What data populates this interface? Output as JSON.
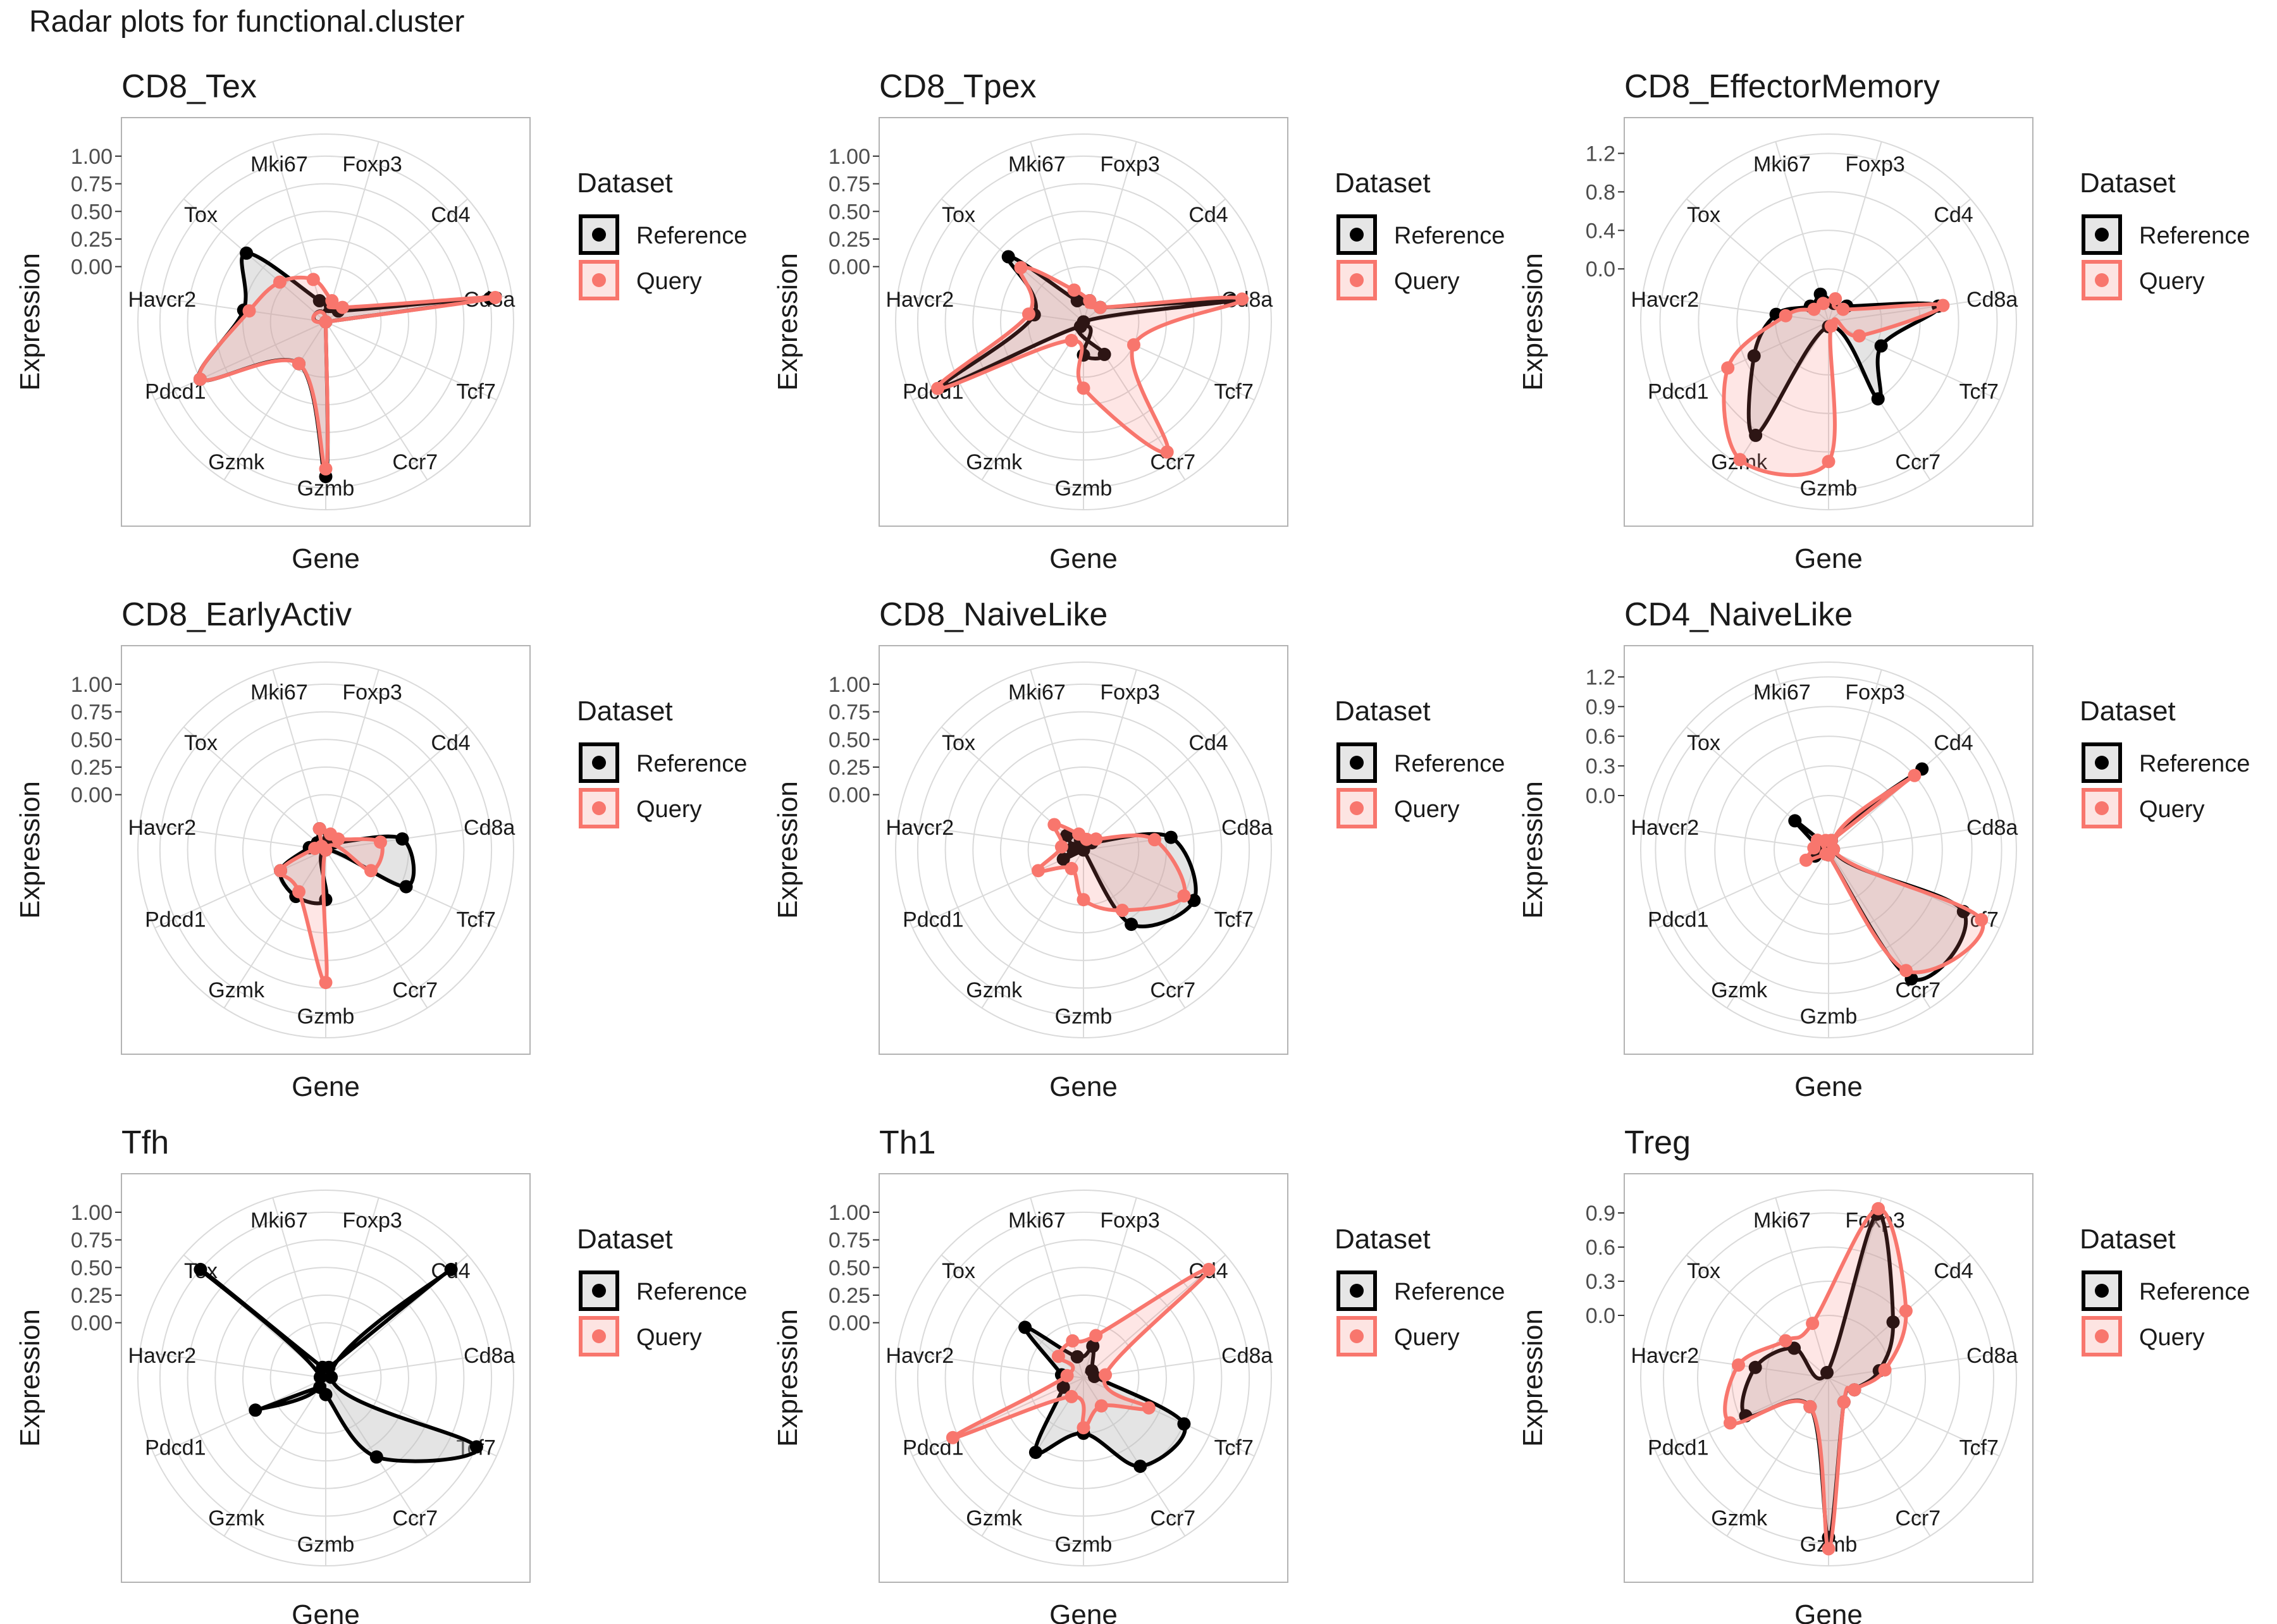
{
  "title": "Radar plots for functional.cluster",
  "genes": [
    "Foxp3",
    "Cd4",
    "Cd8a",
    "Tcf7",
    "Ccr7",
    "Gzmb",
    "Gzmk",
    "Pdcd1",
    "Havcr2",
    "Tox",
    "Mki67"
  ],
  "legend": {
    "title": "Dataset",
    "entries": [
      "Reference",
      "Query"
    ]
  },
  "colors": {
    "reference": "#000000",
    "query": "#F8766D",
    "reference_fill": "#BEBEBE",
    "query_fill": "#F8766D",
    "grid": "#DADADA",
    "panel_border": "#B3B3B3",
    "text": "#1A1A1A",
    "tick_text": "#4D4D4D"
  },
  "chart_data": [
    {
      "type": "radar",
      "title": "CD8_Tex",
      "xlabel": "Gene",
      "ylabel": "Expression",
      "y_ticks": [
        "0.00",
        "0.25",
        "0.50",
        "0.75",
        "1.00"
      ],
      "ylim": [
        -0.5,
        1.2
      ],
      "grid": true,
      "series": [
        {
          "name": "Reference",
          "values": [
            -0.35,
            -0.35,
            1.0,
            -0.5,
            -0.5,
            0.9,
            -0.05,
            0.75,
            0.25,
            0.45,
            -0.3
          ]
        },
        {
          "name": "Query",
          "values": [
            -0.3,
            -0.3,
            1.05,
            -0.5,
            -0.5,
            0.83,
            -0.05,
            0.75,
            0.2,
            0.05,
            -0.1
          ]
        }
      ]
    },
    {
      "type": "radar",
      "title": "CD8_Tpex",
      "xlabel": "Gene",
      "ylabel": "Expression",
      "y_ticks": [
        "0.00",
        "0.25",
        "0.50",
        "0.75",
        "1.00"
      ],
      "ylim": [
        -0.5,
        1.2
      ],
      "grid": true,
      "series": [
        {
          "name": "Reference",
          "values": [
            -0.3,
            -0.3,
            0.85,
            -0.5,
            -0.15,
            -0.2,
            -0.45,
            0.9,
            -0.05,
            0.4,
            -0.3
          ]
        },
        {
          "name": "Query",
          "values": [
            -0.3,
            -0.3,
            0.95,
            0.0,
            0.9,
            0.1,
            -0.3,
            0.95,
            0.0,
            0.25,
            -0.2
          ]
        }
      ]
    },
    {
      "type": "radar",
      "title": "CD8_EffectorMemory",
      "xlabel": "Gene",
      "ylabel": "Expression",
      "y_ticks": [
        "0.0",
        "0.4",
        "0.8",
        "1.2"
      ],
      "ylim": [
        -0.55,
        1.4
      ],
      "grid": true,
      "series": [
        {
          "name": "Reference",
          "values": [
            -0.35,
            -0.3,
            0.6,
            0.05,
            0.4,
            -0.5,
            0.85,
            0.3,
            0.0,
            -0.3,
            -0.25
          ]
        },
        {
          "name": "Query",
          "values": [
            -0.3,
            -0.35,
            0.65,
            -0.2,
            -0.5,
            0.9,
            1.15,
            0.6,
            -0.1,
            -0.35,
            -0.35
          ]
        }
      ]
    },
    {
      "type": "radar",
      "title": "CD8_EarlyActiv",
      "xlabel": "Gene",
      "ylabel": "Expression",
      "y_ticks": [
        "0.00",
        "0.25",
        "0.50",
        "0.75",
        "1.00"
      ],
      "ylim": [
        -0.5,
        1.2
      ],
      "grid": true,
      "series": [
        {
          "name": "Reference",
          "values": [
            -0.4,
            -0.4,
            0.2,
            0.3,
            -0.5,
            -0.05,
            0.0,
            -0.05,
            -0.35,
            -0.4,
            -0.3
          ]
        },
        {
          "name": "Query",
          "values": [
            -0.35,
            -0.35,
            0.0,
            -0.05,
            -0.5,
            0.7,
            -0.05,
            -0.05,
            -0.4,
            -0.45,
            -0.3
          ]
        }
      ]
    },
    {
      "type": "radar",
      "title": "CD8_NaiveLike",
      "xlabel": "Gene",
      "ylabel": "Expression",
      "y_ticks": [
        "0.00",
        "0.25",
        "0.50",
        "0.75",
        "1.00"
      ],
      "ylim": [
        -0.5,
        1.2
      ],
      "grid": true,
      "series": [
        {
          "name": "Reference",
          "values": [
            -0.45,
            -0.4,
            0.3,
            0.6,
            0.3,
            -0.5,
            -0.5,
            -0.3,
            -0.4,
            -0.3,
            -0.4
          ]
        },
        {
          "name": "Query",
          "values": [
            -0.4,
            -0.35,
            0.15,
            0.5,
            0.15,
            -0.05,
            -0.3,
            -0.05,
            -0.3,
            -0.15,
            -0.35
          ]
        }
      ]
    },
    {
      "type": "radar",
      "title": "CD4_NaiveLike",
      "xlabel": "Gene",
      "ylabel": "Expression",
      "y_ticks": [
        "0.0",
        "0.3",
        "0.6",
        "0.9",
        "1.2"
      ],
      "ylim": [
        -0.55,
        1.35
      ],
      "grid": true,
      "series": [
        {
          "name": "Reference",
          "values": [
            -0.45,
            0.7,
            -0.5,
            0.95,
            1.0,
            -0.5,
            -0.5,
            -0.4,
            -0.45,
            -0.1,
            -0.5
          ]
        },
        {
          "name": "Query",
          "values": [
            -0.45,
            0.6,
            -0.5,
            1.15,
            0.9,
            -0.5,
            -0.5,
            -0.3,
            -0.4,
            -0.4,
            -0.45
          ]
        }
      ]
    },
    {
      "type": "radar",
      "title": "Tfh",
      "xlabel": "Gene",
      "ylabel": "Expression",
      "y_ticks": [
        "0.00",
        "0.25",
        "0.50",
        "0.75",
        "1.00"
      ],
      "ylim": [
        -0.5,
        1.2
      ],
      "grid": true,
      "series": [
        {
          "name": "Reference",
          "values": [
            -0.4,
            1.0,
            -0.45,
            1.0,
            0.35,
            -0.35,
            -0.4,
            0.2,
            -0.45,
            1.0,
            -0.4
          ]
        }
      ]
    },
    {
      "type": "radar",
      "title": "Th1",
      "xlabel": "Gene",
      "ylabel": "Expression",
      "y_ticks": [
        "0.00",
        "0.25",
        "0.50",
        "0.75",
        "1.00"
      ],
      "ylim": [
        -0.5,
        1.2
      ],
      "grid": true,
      "series": [
        {
          "name": "Reference",
          "values": [
            -0.2,
            -0.4,
            -0.4,
            0.5,
            0.45,
            0.0,
            0.3,
            -0.3,
            -0.3,
            0.2,
            -0.3
          ]
        },
        {
          "name": "Query",
          "values": [
            -0.1,
            1.0,
            -0.3,
            0.15,
            -0.2,
            -0.05,
            -0.3,
            0.8,
            -0.35,
            -0.2,
            -0.15
          ]
        }
      ]
    },
    {
      "type": "radar",
      "title": "Treg",
      "xlabel": "Gene",
      "ylabel": "Expression",
      "y_ticks": [
        "0.0",
        "0.3",
        "0.6",
        "0.9"
      ],
      "ylim": [
        -0.55,
        1.1
      ],
      "grid": true,
      "series": [
        {
          "name": "Reference",
          "values": [
            0.95,
            0.2,
            -0.1,
            -0.3,
            -0.3,
            0.85,
            -0.25,
            0.25,
            0.1,
            -0.15,
            -0.5
          ]
        },
        {
          "name": "Query",
          "values": [
            1.0,
            0.35,
            -0.05,
            -0.3,
            -0.3,
            0.95,
            -0.25,
            0.4,
            0.25,
            -0.05,
            -0.05
          ]
        }
      ]
    }
  ]
}
